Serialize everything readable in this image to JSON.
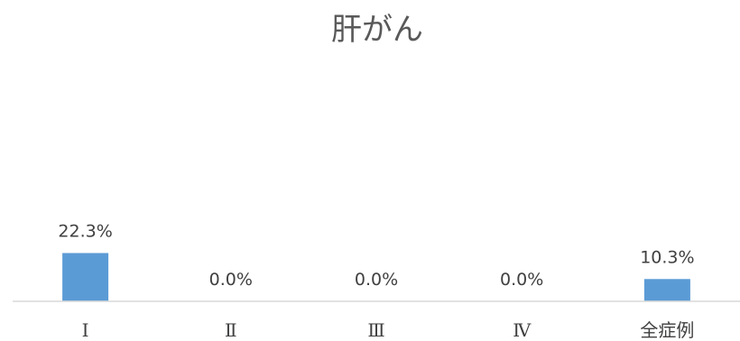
{
  "chart_data": {
    "type": "bar",
    "title": "肝がん",
    "categories": [
      "Ⅰ",
      "Ⅱ",
      "Ⅲ",
      "Ⅳ",
      "全症例"
    ],
    "values": [
      22.3,
      0.0,
      0.0,
      0.0,
      10.3
    ],
    "data_labels": [
      "22.3%",
      "0.0%",
      "0.0%",
      "0.0%",
      "10.3%"
    ],
    "unit": "%",
    "ylim": [
      0,
      100
    ],
    "grid": false,
    "legend": "none",
    "colors": {
      "bar": "#5b9bd5",
      "axis": "#d9d9d9",
      "text": "#404040",
      "title": "#595959"
    }
  }
}
